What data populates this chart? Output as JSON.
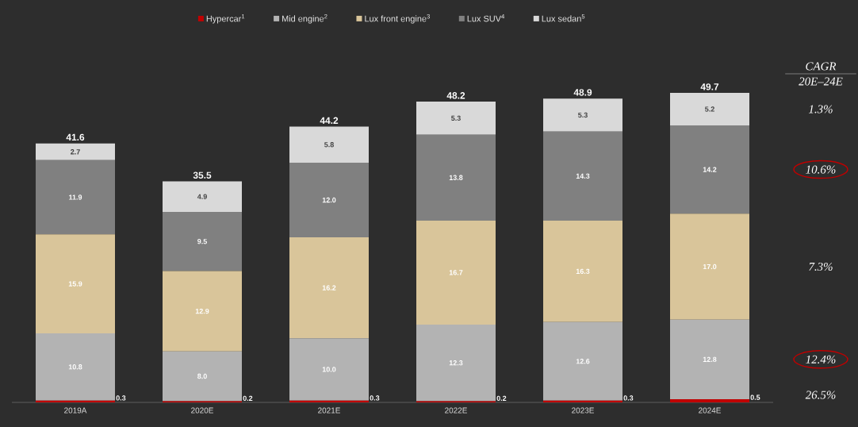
{
  "chart_data": {
    "type": "bar",
    "stacked": true,
    "legend": "top",
    "categories": [
      "2019A",
      "2020E",
      "2021E",
      "2022E",
      "2023E",
      "2024E"
    ],
    "series": [
      {
        "name": "Hypercar$^{1}$",
        "color": "#c00000",
        "values": [
          0.3,
          0.2,
          0.3,
          0.2,
          0.3,
          0.5
        ],
        "value_labels": [
          "0.3",
          "0.2",
          "0.3",
          "0.2",
          "0.3",
          "0.5"
        ]
      },
      {
        "name": "Mid engine$^{2}$",
        "color": "#b3b3b3",
        "values": [
          10.8,
          8.0,
          10.0,
          12.3,
          12.6,
          12.8
        ],
        "value_labels": [
          "10.8",
          "8.0",
          "10.0",
          "12.3",
          "12.6",
          "12.8"
        ]
      },
      {
        "name": "Lux front engine$^{3}$",
        "color": "#d9c59a",
        "values": [
          15.9,
          12.9,
          16.2,
          16.7,
          16.3,
          17.0
        ],
        "value_labels": [
          "15.9",
          "12.9",
          "16.2",
          "16.7",
          "16.3",
          "17.0"
        ]
      },
      {
        "name": "Lux SUV$^{4}$",
        "color": "#808080",
        "values": [
          11.9,
          9.5,
          12.0,
          13.8,
          14.3,
          14.2
        ],
        "value_labels": [
          "11.9",
          "9.5",
          "12.0",
          "13.8",
          "14.3",
          "14.2"
        ]
      },
      {
        "name": "Lux sedan$^{5}$",
        "color": "#d9d9d9",
        "values": [
          2.7,
          4.9,
          5.8,
          5.3,
          5.3,
          5.2
        ],
        "value_labels": [
          "2.7",
          "4.9",
          "5.8",
          "5.3",
          "5.3",
          "5.2"
        ]
      }
    ],
    "totals": [
      "41.6",
      "35.5",
      "44.2",
      "48.2",
      "48.9",
      "49.7"
    ],
    "annotations": [
      "CAGR",
      "20E–24E",
      "1.3%",
      "10.6%",
      "7.3%",
      "12.4%",
      "26.5%"
    ]
  }
}
